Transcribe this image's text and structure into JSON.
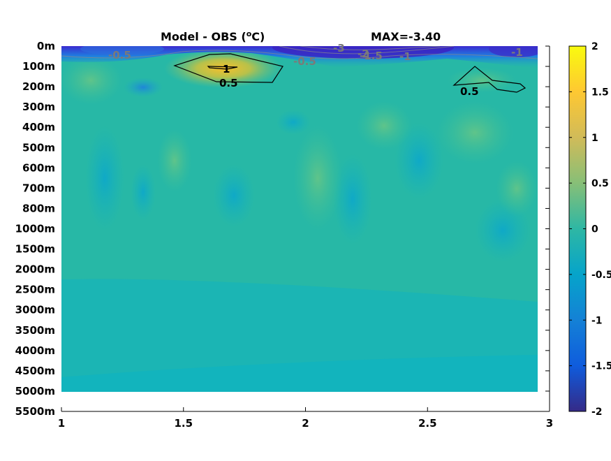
{
  "chart_data": {
    "type": "heatmap",
    "title": "Model - OBS (",
    "title_superscript": "o",
    "title_unit_tail": "C)",
    "annotation": "MAX=-3.40",
    "x_ticks": [
      "1",
      "1.5",
      "2",
      "2.5",
      "3"
    ],
    "xlim": [
      1,
      3
    ],
    "y_ticks": [
      "0m",
      "100m",
      "200m",
      "300m",
      "400m",
      "500m",
      "600m",
      "700m",
      "800m",
      "1000m",
      "1500m",
      "2000m",
      "2500m",
      "3000m",
      "3500m",
      "4000m",
      "4500m",
      "5000m",
      "5500m"
    ],
    "colorbar": {
      "range": [
        -2,
        2
      ],
      "ticks": [
        "2",
        "1.5",
        "1",
        "0.5",
        "0",
        "-0.5",
        "-1",
        "-1.5",
        "-2"
      ],
      "colormap": "parula"
    },
    "contour_labels": [
      {
        "text": "1",
        "color": "black"
      },
      {
        "text": "0.5",
        "color": "black"
      },
      {
        "text": "0.5",
        "color": "black"
      },
      {
        "text": "-0.5",
        "color": "gray"
      },
      {
        "text": "-0.5",
        "color": "gray"
      },
      {
        "text": "-3",
        "color": "gray"
      },
      {
        "text": "-2",
        "color": "gray"
      },
      {
        "text": "-1.5",
        "color": "gray"
      },
      {
        "text": "-1",
        "color": "gray"
      },
      {
        "text": "-1",
        "color": "gray"
      }
    ],
    "grid": false
  },
  "colors": {
    "background_field": "#19b5b3",
    "deep_field": "#12b7bb",
    "positive_anomaly": "#f5c12e",
    "negative_anomaly": "#3f26c8",
    "axis": "#000000"
  }
}
